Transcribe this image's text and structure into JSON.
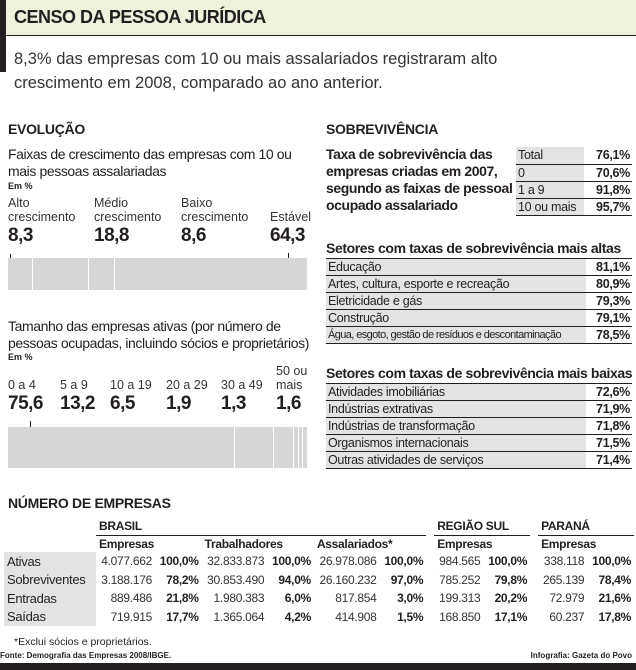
{
  "header": {
    "title": "CENSO DA PESSOA JURÍDICA",
    "lead": [
      "8,3% das empresas com 10 ou mais assalariados registraram alto",
      "crescimento em 2008, comparado ao ano anterior."
    ]
  },
  "evolucao": {
    "section": "EVOLUÇÃO",
    "subtitle": [
      "Faixas de crescimento das empresas com 10 ou",
      "mais pessoas assalariadas"
    ],
    "unit": "Em %",
    "items": [
      {
        "label": [
          "Alto",
          "crescimento"
        ],
        "value": "8,3"
      },
      {
        "label": [
          "Médio",
          "crescimento"
        ],
        "value": "18,8"
      },
      {
        "label": [
          "Baixo",
          "crescimento"
        ],
        "value": "8,6"
      },
      {
        "label": [
          "",
          "Estável"
        ],
        "value": "64,3"
      }
    ]
  },
  "tamanho": {
    "subtitle": [
      "Tamanho das empresas ativas (por número de",
      "pessoas ocupadas, incluindo sócios e proprietários)"
    ],
    "unit": "Em %",
    "items": [
      {
        "label": [
          "",
          "0 a 4"
        ],
        "value": "75,6"
      },
      {
        "label": [
          "",
          "5 a 9"
        ],
        "value": "13,2"
      },
      {
        "label": [
          "",
          "10 a 19"
        ],
        "value": "6,5"
      },
      {
        "label": [
          "",
          "20 a 29"
        ],
        "value": "1,9"
      },
      {
        "label": [
          "",
          "30 a 49"
        ],
        "value": "1,3"
      },
      {
        "label": [
          "50 ou",
          "mais"
        ],
        "value": "1,6"
      }
    ]
  },
  "sobrevivencia": {
    "section": "SOBREVIVÊNCIA",
    "subtitle": [
      "Taxa de sobrevivência das",
      "empresas criadas em 2007,",
      "segundo as faixas de pessoal",
      "ocupado assalariado"
    ],
    "rows": [
      {
        "label": "Total",
        "value": "76,1%"
      },
      {
        "label": "0",
        "value": "70,6%"
      },
      {
        "label": "1 a 9",
        "value": "91,8%"
      },
      {
        "label": "10 ou mais",
        "value": "95,7%"
      }
    ],
    "altas": {
      "title": "Setores com taxas de sobrevivência mais altas",
      "rows": [
        {
          "label": "Educação",
          "value": "81,1%"
        },
        {
          "label": "Artes, cultura, esporte e recreação",
          "value": "80,9%"
        },
        {
          "label": "Eletricidade e gás",
          "value": "79,3%"
        },
        {
          "label": "Construção",
          "value": "79,1%"
        },
        {
          "label": "Água, esgoto, gestão de resíduos e descontaminação",
          "value": "78,5%"
        }
      ]
    },
    "baixas": {
      "title": "Setores com taxas de sobrevivência mais baixas",
      "rows": [
        {
          "label": "Atividades imobiliárias",
          "value": "72,6%"
        },
        {
          "label": "Indústrias extrativas",
          "value": "71,9%"
        },
        {
          "label": "Indústrias de transformação",
          "value": "71,8%"
        },
        {
          "label": "Organismos internacionais",
          "value": "71,5%"
        },
        {
          "label": "Outras atividades de serviços",
          "value": "71,4%"
        }
      ]
    }
  },
  "numero": {
    "section": "NÚMERO DE EMPRESAS",
    "groups": [
      "BRASIL",
      "REGIÃO SUL",
      "PARANÁ"
    ],
    "cols": [
      "Empresas",
      "Trabalhadores",
      "Assalariados*",
      "Empresas",
      "Empresas"
    ],
    "rows": [
      {
        "label": "Ativas",
        "cells": [
          "4.077.662",
          "100,0%",
          "32.833.873",
          "100,0%",
          "26.978.086",
          "100,0%",
          "984.565",
          "100,0%",
          "338.118",
          "100,0%"
        ]
      },
      {
        "label": "Sobreviventes",
        "cells": [
          "3.188.176",
          "78,2%",
          "30.853.490",
          "94,0%",
          "26.160.232",
          "97,0%",
          "785.252",
          "79,8%",
          "265.139",
          "78,4%"
        ]
      },
      {
        "label": "Entradas",
        "cells": [
          "889.486",
          "21,8%",
          "1.980.383",
          "6,0%",
          "817.854",
          "3,0%",
          "199.313",
          "20,2%",
          "72.979",
          "21,6%"
        ]
      },
      {
        "label": "Saídas",
        "cells": [
          "719.915",
          "17,7%",
          "1.365.064",
          "4,2%",
          "414.908",
          "1,5%",
          "168.850",
          "17,1%",
          "60.237",
          "17,8%"
        ]
      }
    ]
  },
  "footer": {
    "note": "*Exclui sócios e proprietários.",
    "source": "Fonte: Demografia das Empresas 2008/IBGE.",
    "credit": "Infografia: Gazeta do Povo"
  },
  "chart_data": [
    {
      "type": "bar",
      "stacked": true,
      "title": "Faixas de crescimento das empresas com 10 ou mais pessoas assalariadas",
      "ylabel": "Em %",
      "categories": [
        "Alto crescimento",
        "Médio crescimento",
        "Baixo crescimento",
        "Estável"
      ],
      "values": [
        8.3,
        18.8,
        8.6,
        64.3
      ]
    },
    {
      "type": "bar",
      "stacked": true,
      "title": "Tamanho das empresas ativas (por número de pessoas ocupadas, incluindo sócios e proprietários)",
      "ylabel": "Em %",
      "categories": [
        "0 a 4",
        "5 a 9",
        "10 a 19",
        "20 a 29",
        "30 a 49",
        "50 ou mais"
      ],
      "values": [
        75.6,
        13.2,
        6.5,
        1.9,
        1.3,
        1.6
      ]
    }
  ]
}
